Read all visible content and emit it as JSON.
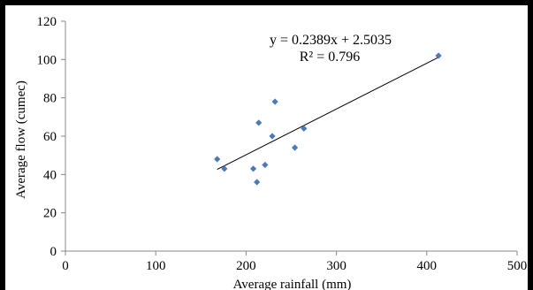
{
  "chart_data": {
    "type": "scatter",
    "title": "",
    "xlabel": "Average rainfall (mm)",
    "ylabel": "Average flow (cumec)",
    "xlim": [
      0,
      500
    ],
    "ylim": [
      0,
      120
    ],
    "x_ticks": [
      0,
      100,
      200,
      300,
      400,
      500
    ],
    "y_ticks": [
      0,
      20,
      40,
      60,
      80,
      100,
      120
    ],
    "grid": false,
    "series": [
      {
        "points": [
          {
            "x": 168,
            "y": 48
          },
          {
            "x": 176,
            "y": 43
          },
          {
            "x": 208,
            "y": 43
          },
          {
            "x": 212,
            "y": 36
          },
          {
            "x": 214,
            "y": 67
          },
          {
            "x": 221,
            "y": 45
          },
          {
            "x": 229,
            "y": 60
          },
          {
            "x": 232,
            "y": 78
          },
          {
            "x": 254,
            "y": 54
          },
          {
            "x": 264,
            "y": 64
          },
          {
            "x": 413,
            "y": 102
          }
        ]
      }
    ],
    "trendline": {
      "slope": 0.2389,
      "intercept": 2.5035,
      "x_range": [
        168,
        413
      ],
      "equation_label": "y = 0.2389x + 2.5035",
      "r2_label": "R² = 0.796"
    },
    "colors": {
      "marker": "#4a7ab8",
      "trendline": "#000000",
      "axis": "#888888"
    }
  }
}
